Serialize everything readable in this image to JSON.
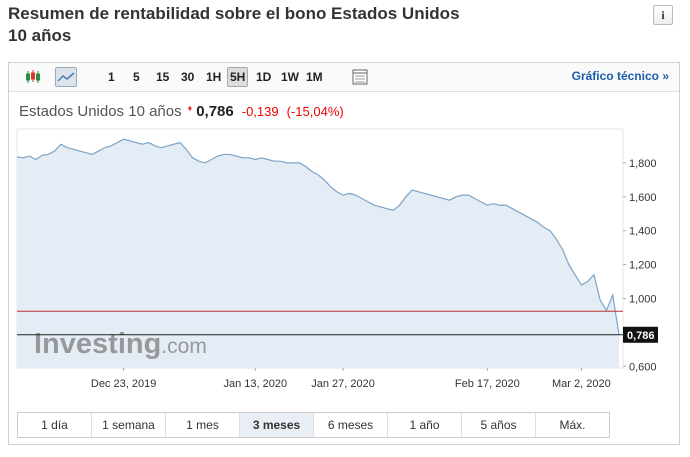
{
  "header": {
    "title": "Resumen de rentabilidad sobre el bono Estados Unidos 10 años"
  },
  "toolbar": {
    "intervals": [
      "1",
      "5",
      "15",
      "30",
      "1H",
      "5H",
      "1D",
      "1W",
      "1M"
    ],
    "selected": "5H",
    "link": "Gráfico técnico",
    "link_arrow": "»"
  },
  "ranges": {
    "items": [
      "1 día",
      "1 semana",
      "1 mes",
      "3 meses",
      "6 meses",
      "1 año",
      "5 años",
      "Máx."
    ],
    "selected": "3 meses"
  },
  "watermark": {
    "brand": "Investing",
    "suffix": ".com"
  },
  "chart_data": {
    "type": "area",
    "instrument": "Estados Unidos 10 años",
    "last": {
      "value": 0.786,
      "label": "0,786"
    },
    "change": {
      "value": -0.139,
      "label": "-0,139"
    },
    "change_pct": {
      "value": -15.04,
      "label": "(-15,04%)"
    },
    "prev_close": 0.925,
    "color": "#7ea3c6",
    "fill": "#e4edf5",
    "ylim": [
      0.59,
      2.0
    ],
    "yticks": [
      {
        "value": 0.6,
        "label": "0,600"
      },
      {
        "value": 1.0,
        "label": "1,000"
      },
      {
        "value": 1.2,
        "label": "1,200"
      },
      {
        "value": 1.4,
        "label": "1,400"
      },
      {
        "value": 1.6,
        "label": "1,600"
      },
      {
        "value": 1.8,
        "label": "1,800"
      }
    ],
    "categories": [
      null,
      null,
      null,
      null,
      null,
      null,
      null,
      null,
      null,
      null,
      null,
      null,
      null,
      null,
      null,
      null,
      null,
      "Dec 23, 2019",
      null,
      null,
      null,
      null,
      null,
      null,
      null,
      null,
      null,
      null,
      null,
      null,
      null,
      null,
      null,
      null,
      null,
      null,
      null,
      null,
      "Jan 13, 2020",
      null,
      null,
      null,
      null,
      null,
      null,
      null,
      null,
      null,
      null,
      null,
      null,
      null,
      "Jan 27, 2020",
      null,
      null,
      null,
      null,
      null,
      null,
      null,
      null,
      null,
      null,
      null,
      null,
      null,
      null,
      null,
      null,
      null,
      null,
      null,
      null,
      null,
      null,
      "Feb 17, 2020",
      null,
      null,
      null,
      null,
      null,
      null,
      null,
      null,
      null,
      null,
      null,
      null,
      null,
      null,
      "Mar 2, 2020",
      null,
      null,
      null,
      null,
      null,
      null
    ],
    "values": [
      1.835,
      1.83,
      1.84,
      1.82,
      1.845,
      1.85,
      1.87,
      1.91,
      1.89,
      1.88,
      1.87,
      1.86,
      1.85,
      1.87,
      1.89,
      1.9,
      1.92,
      1.94,
      1.93,
      1.92,
      1.91,
      1.92,
      1.9,
      1.89,
      1.9,
      1.91,
      1.92,
      1.88,
      1.83,
      1.81,
      1.8,
      1.82,
      1.84,
      1.85,
      1.85,
      1.84,
      1.83,
      1.83,
      1.82,
      1.83,
      1.82,
      1.81,
      1.81,
      1.8,
      1.8,
      1.8,
      1.78,
      1.75,
      1.73,
      1.7,
      1.66,
      1.63,
      1.61,
      1.62,
      1.61,
      1.59,
      1.57,
      1.55,
      1.54,
      1.53,
      1.52,
      1.55,
      1.6,
      1.64,
      1.63,
      1.62,
      1.61,
      1.6,
      1.59,
      1.58,
      1.6,
      1.61,
      1.61,
      1.59,
      1.57,
      1.55,
      1.56,
      1.55,
      1.55,
      1.53,
      1.51,
      1.49,
      1.47,
      1.45,
      1.42,
      1.4,
      1.35,
      1.29,
      1.2,
      1.14,
      1.08,
      1.1,
      1.14,
      0.99,
      0.93,
      1.02,
      0.786
    ]
  }
}
